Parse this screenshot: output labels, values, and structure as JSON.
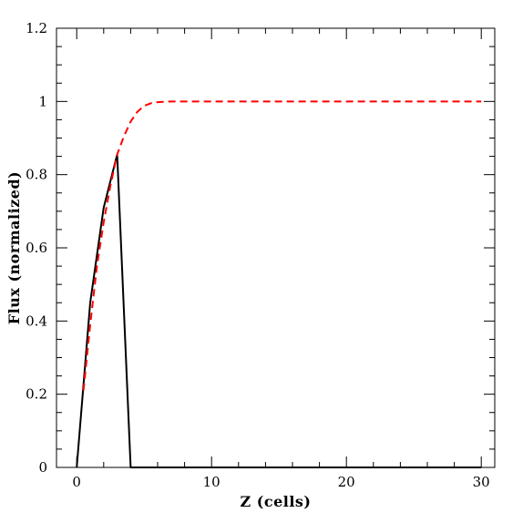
{
  "chart_data": {
    "type": "line",
    "title": "",
    "xlabel": "Z (cells)",
    "ylabel": "Flux (normalized)",
    "xlim": [
      -1.5,
      31.0
    ],
    "ylim": [
      0,
      1.2
    ],
    "xticks": [
      0,
      10,
      20,
      30
    ],
    "xtick_labels": [
      "0",
      "10",
      "20",
      "30"
    ],
    "yticks": [
      0,
      0.2,
      0.4,
      0.6,
      0.8,
      1.0,
      1.2
    ],
    "ytick_labels": [
      "0",
      "0.2",
      "0.4",
      "0.6",
      "0.8",
      "1",
      "1.2"
    ],
    "grid": false,
    "series": [
      {
        "color": "#000000",
        "style": "solid",
        "x": [
          0,
          1,
          2,
          3,
          4,
          5,
          10,
          15,
          20,
          25,
          30
        ],
        "y": [
          0,
          0.45,
          0.71,
          0.855,
          0,
          0,
          0,
          0,
          0,
          0,
          0
        ]
      },
      {
        "color": "#ff0000",
        "style": "dashed",
        "x": [
          0.5,
          1,
          1.5,
          2,
          2.5,
          3,
          3.5,
          4,
          4.5,
          5,
          5.5,
          6,
          7,
          8,
          10,
          15,
          20,
          25,
          30
        ],
        "y": [
          0.21,
          0.39,
          0.55,
          0.67,
          0.77,
          0.855,
          0.905,
          0.945,
          0.972,
          0.988,
          0.995,
          0.998,
          1.0,
          1.0,
          1.0,
          1.0,
          1.0,
          1.0,
          1.0
        ]
      }
    ]
  }
}
